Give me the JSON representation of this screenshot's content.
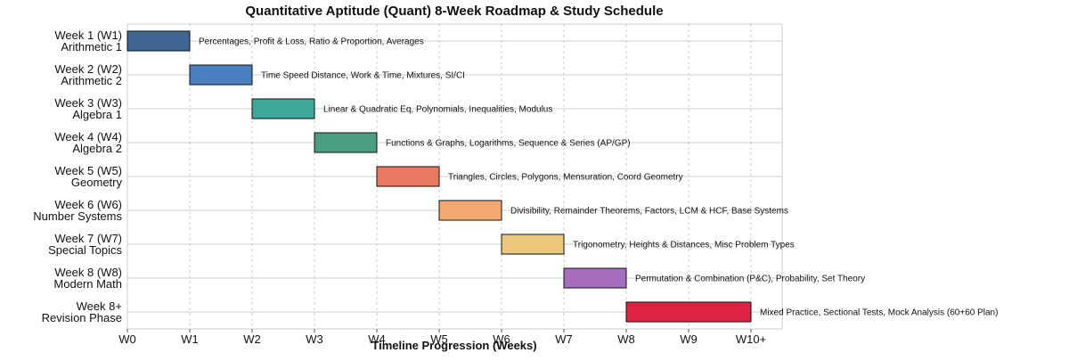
{
  "chart_data": {
    "type": "gantt",
    "title": "Quantitative Aptitude (Quant) 8-Week Roadmap & Study Schedule",
    "xlabel": "Timeline Progression (Weeks)",
    "ylabel": "",
    "xlim": [
      0,
      10.5
    ],
    "xticks": [
      {
        "value": 0,
        "label": "W0"
      },
      {
        "value": 1,
        "label": "W1"
      },
      {
        "value": 2,
        "label": "W2"
      },
      {
        "value": 3,
        "label": "W3"
      },
      {
        "value": 4,
        "label": "W4"
      },
      {
        "value": 5,
        "label": "W5"
      },
      {
        "value": 6,
        "label": "W6"
      },
      {
        "value": 7,
        "label": "W7"
      },
      {
        "value": 8,
        "label": "W8"
      },
      {
        "value": 9,
        "label": "W9"
      },
      {
        "value": 10,
        "label": "W10+"
      }
    ],
    "grid": true,
    "tasks": [
      {
        "label_line1": "Week 1 (W1)",
        "label_line2": "Arithmetic 1",
        "start": 0,
        "end": 1,
        "color": "#3f6593",
        "annotation": "Percentages, Profit & Loss, Ratio & Proportion, Averages"
      },
      {
        "label_line1": "Week 2 (W2)",
        "label_line2": "Arithmetic 2",
        "start": 1,
        "end": 2,
        "color": "#4a7fc0",
        "annotation": "Time Speed Distance, Work & Time, Mixtures, SI/CI"
      },
      {
        "label_line1": "Week 3 (W3)",
        "label_line2": "Algebra 1",
        "start": 2,
        "end": 3,
        "color": "#3da89a",
        "annotation": "Linear & Quadratic Eq, Polynomials, Inequalities, Modulus"
      },
      {
        "label_line1": "Week 4 (W4)",
        "label_line2": "Algebra 2",
        "start": 3,
        "end": 4,
        "color": "#4a9e82",
        "annotation": "Functions & Graphs, Logarithms, Sequence & Series (AP/GP)"
      },
      {
        "label_line1": "Week 5 (W5)",
        "label_line2": "Geometry",
        "start": 4,
        "end": 5,
        "color": "#e8785f",
        "annotation": "Triangles, Circles, Polygons, Mensuration, Coord Geometry"
      },
      {
        "label_line1": "Week 6 (W6)",
        "label_line2": "Number Systems",
        "start": 5,
        "end": 6,
        "color": "#f3a86f",
        "annotation": "Divisibility, Remainder Theorems, Factors, LCM & HCF, Base Systems"
      },
      {
        "label_line1": "Week 7 (W7)",
        "label_line2": "Special Topics",
        "start": 6,
        "end": 7,
        "color": "#ecc87a",
        "annotation": "Trigonometry, Heights & Distances, Misc Problem Types"
      },
      {
        "label_line1": "Week 8 (W8)",
        "label_line2": "Modern Math",
        "start": 7,
        "end": 8,
        "color": "#a66dbe",
        "annotation": "Permutation & Combination (P&C), Probability, Set Theory"
      },
      {
        "label_line1": "Week 8+",
        "label_line2": "Revision Phase",
        "start": 8,
        "end": 10,
        "color": "#dc2342",
        "annotation": "Mixed Practice, Sectional Tests, Mock Analysis (60+60 Plan)"
      }
    ]
  }
}
